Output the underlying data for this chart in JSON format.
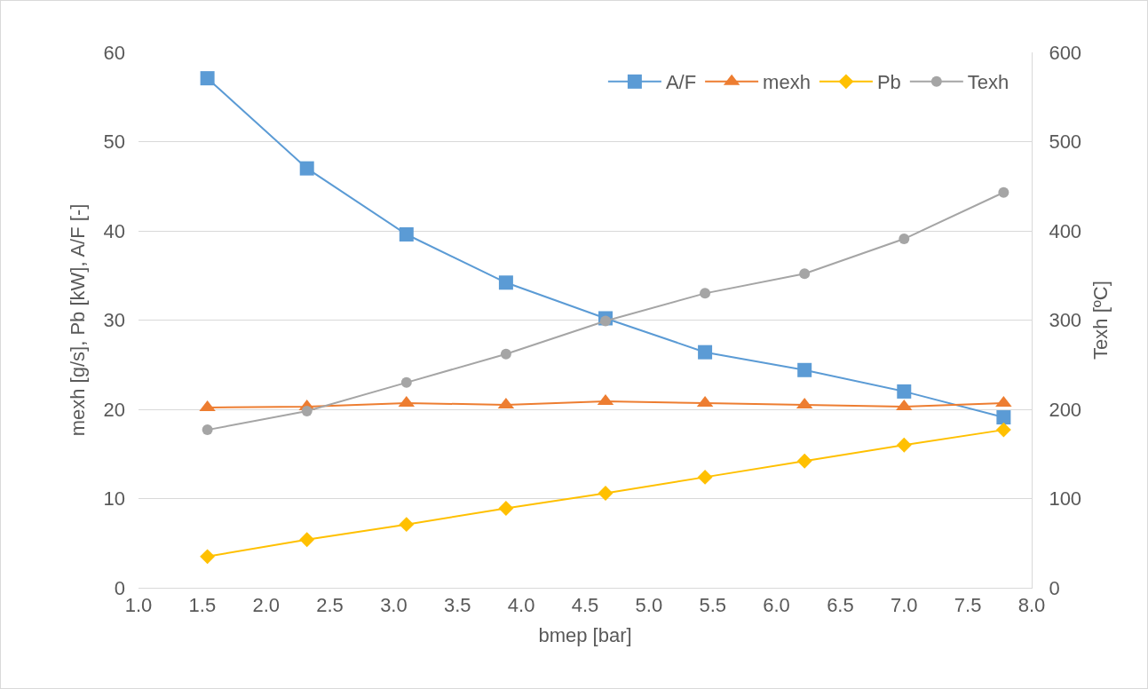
{
  "chart_data": {
    "type": "line",
    "xlabel": "bmep [bar]",
    "ylabel": "mexh [g/s], Pb [kW], A/F [-]",
    "y2label": "Texh [ºC]",
    "x": [
      1.54,
      2.32,
      3.1,
      3.88,
      4.66,
      5.44,
      6.22,
      7.0,
      7.78
    ],
    "xlim": [
      1.0,
      8.0
    ],
    "xticks": [
      {
        "value": 1,
        "label": "1.0"
      },
      {
        "value": 1.5,
        "label": "1.5"
      },
      {
        "value": 2,
        "label": "2.0"
      },
      {
        "value": 2.5,
        "label": "2.5"
      },
      {
        "value": 3,
        "label": "3.0"
      },
      {
        "value": 3.5,
        "label": "3.5"
      },
      {
        "value": 4,
        "label": "4.0"
      },
      {
        "value": 4.5,
        "label": "4.5"
      },
      {
        "value": 5,
        "label": "5.0"
      },
      {
        "value": 5.5,
        "label": "5.5"
      },
      {
        "value": 6,
        "label": "6.0"
      },
      {
        "value": 6.5,
        "label": "6.5"
      },
      {
        "value": 7,
        "label": "7.0"
      },
      {
        "value": 7.5,
        "label": "7.5"
      },
      {
        "value": 8,
        "label": "8.0"
      }
    ],
    "ylim": [
      0,
      60
    ],
    "yticks": [
      0,
      10,
      20,
      30,
      40,
      50,
      60
    ],
    "y2lim": [
      0,
      600
    ],
    "y2ticks": [
      0,
      100,
      200,
      300,
      400,
      500,
      600
    ],
    "grid": "y",
    "legend": "top right",
    "line_style": "solid",
    "series": [
      {
        "name": "A/F",
        "color": "#5b9bd5",
        "marker": "square",
        "values": [
          57.1,
          47.0,
          39.6,
          34.2,
          30.2,
          26.4,
          24.4,
          22.0,
          19.1
        ]
      },
      {
        "name": "mexh",
        "color": "#ed7d31",
        "marker": "triangle",
        "values": [
          20.2,
          20.3,
          20.7,
          20.5,
          20.9,
          20.7,
          20.5,
          20.3,
          20.7
        ]
      },
      {
        "name": "Pb",
        "color": "#ffc000",
        "marker": "diamond",
        "values": [
          3.5,
          5.4,
          7.1,
          8.9,
          10.6,
          12.4,
          14.2,
          16.0,
          17.7
        ]
      },
      {
        "name": "Texh",
        "color": "#a5a5a5",
        "marker": "circle",
        "axis": "y2",
        "values": [
          177,
          198,
          230,
          262,
          299,
          330,
          352,
          391,
          443
        ]
      }
    ]
  }
}
